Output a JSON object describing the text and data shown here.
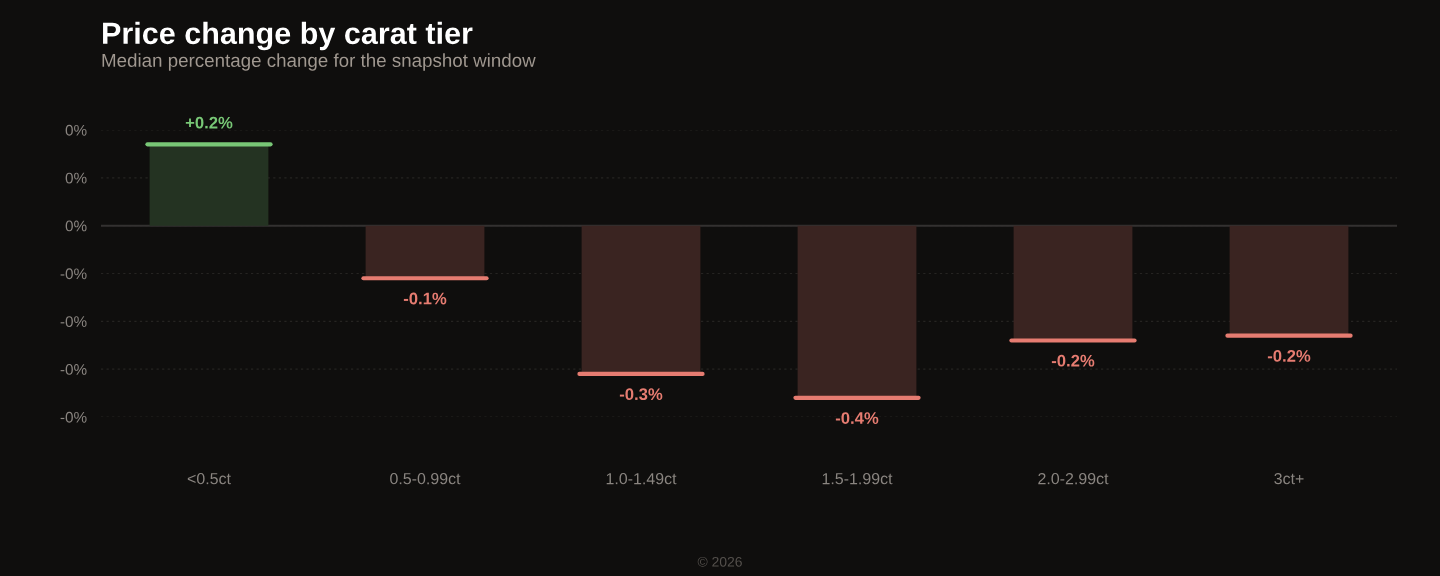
{
  "chart_data": {
    "type": "bar",
    "title": "Price change by carat tier",
    "subtitle": "Median percentage change for the snapshot window",
    "categories": [
      "<0.5ct",
      "0.5-0.99ct",
      "1.0-1.49ct",
      "1.5-1.99ct",
      "2.0-2.99ct",
      "3ct+"
    ],
    "values": [
      0.17,
      -0.11,
      -0.31,
      -0.36,
      -0.24,
      -0.23
    ],
    "value_labels": [
      "+0.2%",
      "-0.1%",
      "-0.3%",
      "-0.4%",
      "-0.2%",
      "-0.2%"
    ],
    "colors": [
      "#243322",
      "#3a2421",
      "#3a2421",
      "#3a2421",
      "#3a2421",
      "#3a2421"
    ],
    "ylim": [
      -0.4,
      0.2
    ],
    "yticks": [
      {
        "value": 0.2,
        "label": "0%"
      },
      {
        "value": 0.1,
        "label": "0%"
      },
      {
        "value": 0,
        "label": "0%"
      },
      {
        "value": -0.1,
        "label": "-0%"
      },
      {
        "value": -0.2,
        "label": "-0%"
      },
      {
        "value": -0.3,
        "label": "-0%"
      },
      {
        "value": -0.4,
        "label": "-0%"
      }
    ],
    "grid": "y",
    "annotations": [
      "© 2026"
    ]
  }
}
